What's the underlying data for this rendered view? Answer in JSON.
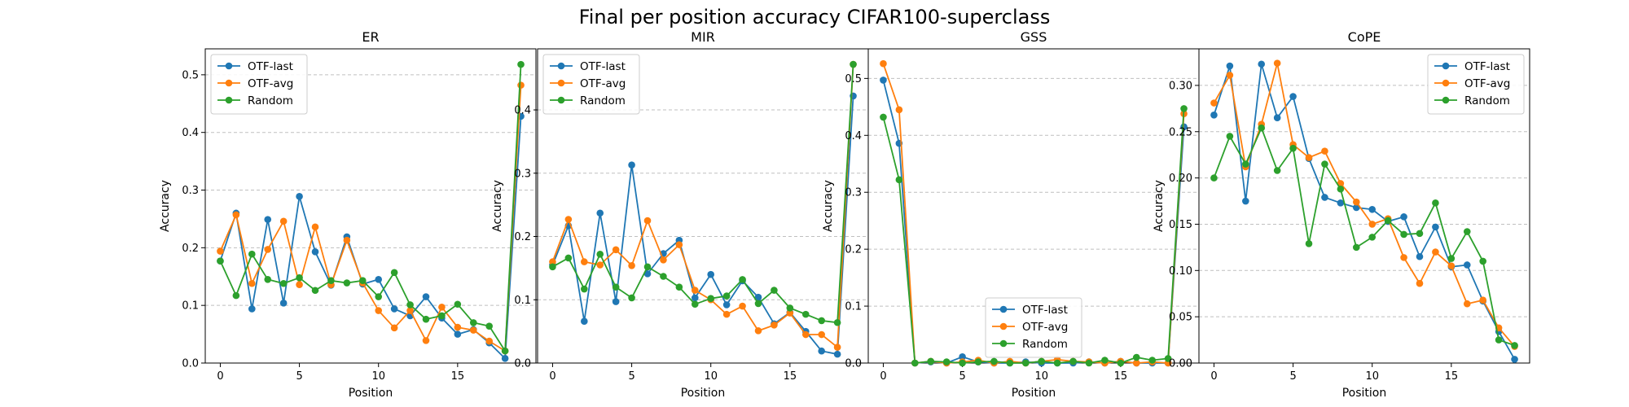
{
  "figure": {
    "title": "Final per position accuracy CIFAR100-superclass"
  },
  "colors": {
    "OTF-last": "#1f77b4",
    "OTF-avg": "#ff7f0e",
    "Random": "#2ca02c",
    "grid": "#b0b0b0",
    "axes": "#000000"
  },
  "chart_data": [
    {
      "type": "line",
      "title": "ER",
      "xlabel": "Position",
      "ylabel": "Accuracy",
      "x": [
        0,
        1,
        2,
        3,
        4,
        5,
        6,
        7,
        8,
        9,
        10,
        11,
        12,
        13,
        14,
        15,
        16,
        17,
        18,
        19
      ],
      "xlim": [
        -0.95,
        19.95
      ],
      "ylim": [
        0,
        0.545
      ],
      "xticks": [
        0,
        5,
        10,
        15
      ],
      "yticks": [
        0.0,
        0.1,
        0.2,
        0.3,
        0.4,
        0.5
      ],
      "ytick_labels": [
        "0.0",
        "0.1",
        "0.2",
        "0.3",
        "0.4",
        "0.5"
      ],
      "grid": "y-dashed",
      "legend_position": "upper-left",
      "series": [
        {
          "name": "OTF-last",
          "values": [
            0.177,
            0.26,
            0.094,
            0.249,
            0.104,
            0.289,
            0.193,
            0.135,
            0.219,
            0.137,
            0.145,
            0.094,
            0.082,
            0.115,
            0.078,
            0.05,
            0.058,
            0.035,
            0.008,
            0.428
          ]
        },
        {
          "name": "OTF-avg",
          "values": [
            0.194,
            0.257,
            0.138,
            0.197,
            0.246,
            0.136,
            0.236,
            0.136,
            0.213,
            0.139,
            0.091,
            0.061,
            0.091,
            0.039,
            0.097,
            0.062,
            0.057,
            0.038,
            0.021,
            0.482
          ]
        },
        {
          "name": "Random",
          "values": [
            0.177,
            0.117,
            0.189,
            0.145,
            0.138,
            0.148,
            0.126,
            0.143,
            0.139,
            0.143,
            0.115,
            0.157,
            0.101,
            0.076,
            0.082,
            0.102,
            0.07,
            0.064,
            0.021,
            0.518
          ]
        }
      ]
    },
    {
      "type": "line",
      "title": "MIR",
      "xlabel": "Position",
      "ylabel": "Accuracy",
      "x": [
        0,
        1,
        2,
        3,
        4,
        5,
        6,
        7,
        8,
        9,
        10,
        11,
        12,
        13,
        14,
        15,
        16,
        17,
        18,
        19
      ],
      "xlim": [
        -0.95,
        19.95
      ],
      "ylim": [
        0,
        0.4965
      ],
      "xticks": [
        0,
        5,
        10,
        15
      ],
      "yticks": [
        0.0,
        0.1,
        0.2,
        0.3,
        0.4
      ],
      "ytick_labels": [
        "0.0",
        "0.1",
        "0.2",
        "0.3",
        "0.4"
      ],
      "grid": "y-dashed",
      "legend_position": "upper-left",
      "series": [
        {
          "name": "OTF-last",
          "values": [
            0.155,
            0.217,
            0.066,
            0.237,
            0.097,
            0.313,
            0.141,
            0.173,
            0.194,
            0.103,
            0.14,
            0.092,
            0.13,
            0.104,
            0.062,
            0.08,
            0.05,
            0.019,
            0.014,
            0.422
          ]
        },
        {
          "name": "OTF-avg",
          "values": [
            0.16,
            0.227,
            0.16,
            0.155,
            0.179,
            0.154,
            0.225,
            0.163,
            0.187,
            0.115,
            0.1,
            0.077,
            0.09,
            0.051,
            0.06,
            0.079,
            0.045,
            0.045,
            0.025,
            0.472
          ]
        },
        {
          "name": "Random",
          "values": [
            0.152,
            0.166,
            0.117,
            0.172,
            0.12,
            0.103,
            0.152,
            0.137,
            0.12,
            0.093,
            0.102,
            0.106,
            0.132,
            0.094,
            0.115,
            0.087,
            0.077,
            0.067,
            0.064,
            0.472
          ]
        }
      ]
    },
    {
      "type": "line",
      "title": "GSS",
      "xlabel": "Position",
      "ylabel": "Accuracy",
      "x": [
        0,
        1,
        2,
        3,
        4,
        5,
        6,
        7,
        8,
        9,
        10,
        11,
        12,
        13,
        14,
        15,
        16,
        17,
        18,
        19
      ],
      "xlim": [
        -0.95,
        19.95
      ],
      "ylim": [
        0,
        0.552
      ],
      "xticks": [
        0,
        5,
        10,
        15
      ],
      "yticks": [
        0.0,
        0.1,
        0.2,
        0.3,
        0.4,
        0.5
      ],
      "ytick_labels": [
        "0.0",
        "0.1",
        "0.2",
        "0.3",
        "0.4",
        "0.5"
      ],
      "grid": "y-dashed",
      "legend_position": "lower-center",
      "series": [
        {
          "name": "OTF-last",
          "values": [
            0.497,
            0.386,
            0.0,
            0.002,
            0.0,
            0.011,
            0.002,
            0.0,
            0.0,
            0.002,
            0.0,
            0.0,
            0.0,
            0.002,
            0.0,
            0.003,
            0.0,
            0.0,
            0.0,
            0.415
          ]
        },
        {
          "name": "OTF-avg",
          "values": [
            0.526,
            0.445,
            0.0,
            0.003,
            0.0,
            0.002,
            0.005,
            0.0,
            0.003,
            0.0,
            0.003,
            0.006,
            0.003,
            0.002,
            0.0,
            0.003,
            0.0,
            0.002,
            0.0,
            0.438
          ]
        },
        {
          "name": "Random",
          "values": [
            0.432,
            0.322,
            0.0,
            0.003,
            0.002,
            0.0,
            0.002,
            0.003,
            0.0,
            0.0,
            0.003,
            0.0,
            0.003,
            0.0,
            0.005,
            0.0,
            0.01,
            0.005,
            0.008,
            0.447
          ]
        }
      ]
    },
    {
      "type": "line",
      "title": "CoPE",
      "xlabel": "Position",
      "ylabel": "Accuracy",
      "x": [
        0,
        1,
        2,
        3,
        4,
        5,
        6,
        7,
        8,
        9,
        10,
        11,
        12,
        13,
        14,
        15,
        16,
        17,
        18,
        19
      ],
      "xlim": [
        -0.95,
        19.95
      ],
      "ylim": [
        0,
        0.3395
      ],
      "xticks": [
        0,
        5,
        10,
        15
      ],
      "yticks": [
        0.0,
        0.05,
        0.1,
        0.15,
        0.2,
        0.25,
        0.3
      ],
      "ytick_labels": [
        "0.00",
        "0.05",
        "0.10",
        "0.15",
        "0.20",
        "0.25",
        "0.30"
      ],
      "grid": "y-dashed",
      "legend_position": "upper-right",
      "series": [
        {
          "name": "OTF-last",
          "values": [
            0.268,
            0.321,
            0.175,
            0.323,
            0.265,
            0.288,
            0.221,
            0.179,
            0.173,
            0.168,
            0.166,
            0.153,
            0.158,
            0.115,
            0.147,
            0.104,
            0.106,
            0.067,
            0.034,
            0.004
          ]
        },
        {
          "name": "OTF-avg",
          "values": [
            0.281,
            0.311,
            0.212,
            0.258,
            0.324,
            0.236,
            0.222,
            0.229,
            0.194,
            0.174,
            0.15,
            0.156,
            0.114,
            0.086,
            0.12,
            0.105,
            0.064,
            0.068,
            0.038,
            0.018
          ]
        },
        {
          "name": "Random",
          "values": [
            0.2,
            0.245,
            0.215,
            0.254,
            0.208,
            0.232,
            0.129,
            0.215,
            0.188,
            0.125,
            0.136,
            0.154,
            0.139,
            0.14,
            0.173,
            0.113,
            0.142,
            0.11,
            0.025,
            0.019
          ]
        }
      ]
    }
  ]
}
